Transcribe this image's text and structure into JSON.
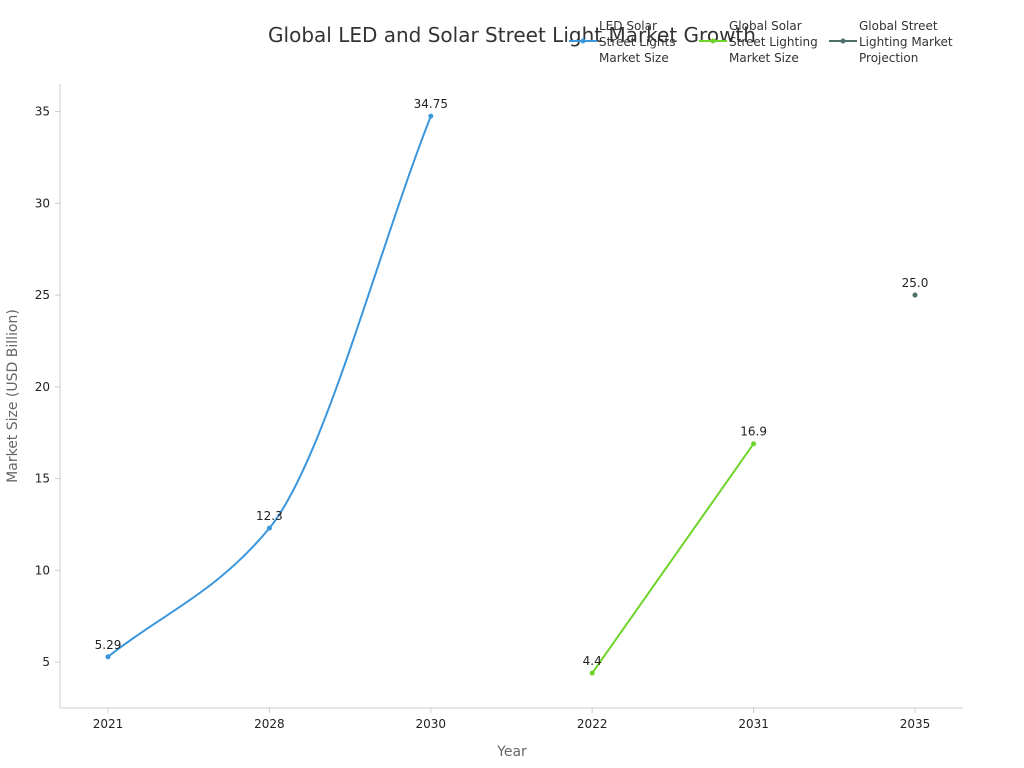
{
  "chart_data": {
    "type": "line",
    "title": "Global LED and Solar Street Light Market Growth",
    "xlabel": "Year",
    "ylabel": "Market Size (USD Billion)",
    "categories": [
      "2021",
      "2028",
      "2030",
      "2022",
      "2031",
      "2035"
    ],
    "ylim": [
      2.5,
      36.5
    ],
    "yticks": [
      5,
      10,
      15,
      20,
      25,
      30,
      35
    ],
    "grid": false,
    "legend_position": "top-right",
    "series": [
      {
        "name": "LED Solar Street Lights Market Size",
        "legend_lines": [
          "LED Solar",
          "Street Lights",
          "Market Size"
        ],
        "color": "#3a96dd",
        "smooth": true,
        "points": [
          {
            "x": "2021",
            "y": 5.29,
            "label": "5.29"
          },
          {
            "x": "2028",
            "y": 12.3,
            "label": "12.3"
          },
          {
            "x": "2030",
            "y": 34.75,
            "label": "34.75"
          }
        ]
      },
      {
        "name": "Global Solar Street Lighting Market Size",
        "legend_lines": [
          "Global Solar",
          "Street Lighting",
          "Market Size"
        ],
        "color": "#6fd42a",
        "smooth": false,
        "points": [
          {
            "x": "2022",
            "y": 4.4,
            "label": "4.4"
          },
          {
            "x": "2031",
            "y": 16.9,
            "label": "16.9"
          }
        ]
      },
      {
        "name": "Global Street Lighting Market Projection",
        "legend_lines": [
          "Global Street",
          "Lighting Market",
          "Projection"
        ],
        "color": "#4e6e6a",
        "smooth": false,
        "points": [
          {
            "x": "2035",
            "y": 25.0,
            "label": "25.0"
          }
        ]
      }
    ]
  }
}
